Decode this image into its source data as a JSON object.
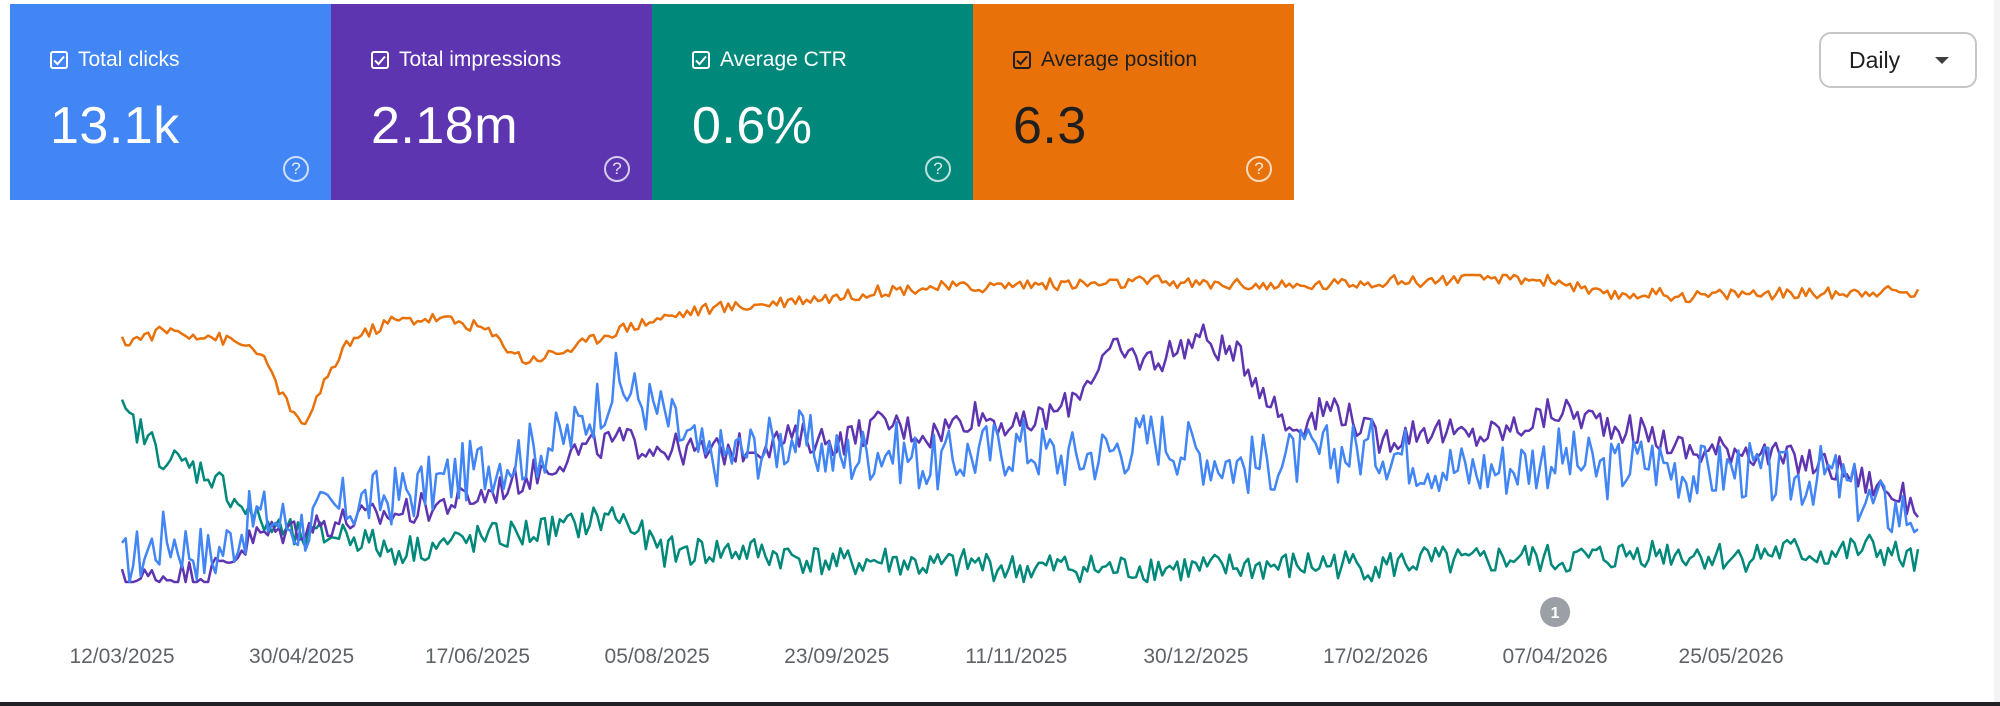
{
  "cards": [
    {
      "label": "Total clicks",
      "value": "13.1k",
      "color": "#4285f4"
    },
    {
      "label": "Total impressions",
      "value": "2.18m",
      "color": "#5e35b1"
    },
    {
      "label": "Average CTR",
      "value": "0.6%",
      "color": "#00897b"
    },
    {
      "label": "Average position",
      "value": "6.3",
      "color": "#e8710a"
    }
  ],
  "help_glyph": "?",
  "dropdown": {
    "selected": "Daily"
  },
  "icons": {
    "checkbox": "checkbox-checked-icon",
    "help": "help-circle-icon",
    "caret": "caret-down-icon"
  },
  "chart_data": {
    "type": "line",
    "x_range": [
      "2025-03-12",
      "2026-07-15"
    ],
    "xtick_labels": [
      "12/03/2025",
      "30/04/2025",
      "17/06/2025",
      "05/08/2025",
      "23/09/2025",
      "11/11/2025",
      "30/12/2025",
      "17/02/2026",
      "07/04/2026",
      "25/05/2026"
    ],
    "annotations": [
      {
        "label": "1",
        "date": "2026-04-07"
      }
    ],
    "grid": false,
    "legend": "cards-top-left",
    "series": [
      {
        "name": "Total clicks",
        "color": "#4285f4",
        "relative_level": [
          0.05,
          0.15,
          0.08,
          0.22,
          0.18,
          0.25,
          0.28,
          0.32,
          0.38,
          0.42,
          0.48,
          0.65,
          0.55,
          0.4,
          0.43,
          0.47,
          0.4,
          0.44,
          0.38,
          0.42,
          0.45,
          0.4,
          0.43,
          0.48,
          0.42,
          0.38,
          0.4,
          0.42,
          0.44,
          0.4,
          0.36,
          0.38,
          0.41,
          0.36,
          0.4,
          0.35,
          0.37,
          0.33,
          0.35,
          0.25,
          0.22
        ]
      },
      {
        "name": "Total impressions",
        "color": "#5e35b1",
        "relative_level": [
          0.0,
          0.02,
          0.03,
          0.15,
          0.18,
          0.2,
          0.22,
          0.25,
          0.28,
          0.34,
          0.42,
          0.46,
          0.44,
          0.42,
          0.44,
          0.47,
          0.46,
          0.52,
          0.48,
          0.55,
          0.5,
          0.57,
          0.75,
          0.72,
          0.8,
          0.72,
          0.5,
          0.58,
          0.46,
          0.5,
          0.47,
          0.5,
          0.56,
          0.52,
          0.48,
          0.42,
          0.44,
          0.4,
          0.38,
          0.32,
          0.25
        ]
      },
      {
        "name": "Average CTR",
        "color": "#00897b",
        "relative_level": [
          0.55,
          0.4,
          0.35,
          0.2,
          0.14,
          0.16,
          0.1,
          0.12,
          0.14,
          0.16,
          0.18,
          0.22,
          0.1,
          0.1,
          0.1,
          0.08,
          0.06,
          0.07,
          0.05,
          0.06,
          0.04,
          0.05,
          0.04,
          0.05,
          0.04,
          0.05,
          0.05,
          0.06,
          0.05,
          0.07,
          0.06,
          0.08,
          0.07,
          0.08,
          0.1,
          0.09,
          0.08,
          0.1,
          0.09,
          0.11,
          0.06
        ]
      },
      {
        "name": "Average position",
        "color": "#e8710a",
        "relative_level": [
          0.78,
          0.82,
          0.8,
          0.76,
          0.5,
          0.78,
          0.85,
          0.86,
          0.83,
          0.72,
          0.76,
          0.82,
          0.86,
          0.89,
          0.9,
          0.92,
          0.93,
          0.95,
          0.96,
          0.96,
          0.97,
          0.97,
          0.97,
          0.98,
          0.97,
          0.97,
          0.96,
          0.97,
          0.98,
          0.98,
          0.99,
          0.99,
          0.98,
          0.93,
          0.94,
          0.93,
          0.94,
          0.94,
          0.94,
          0.95,
          0.94
        ]
      }
    ]
  }
}
